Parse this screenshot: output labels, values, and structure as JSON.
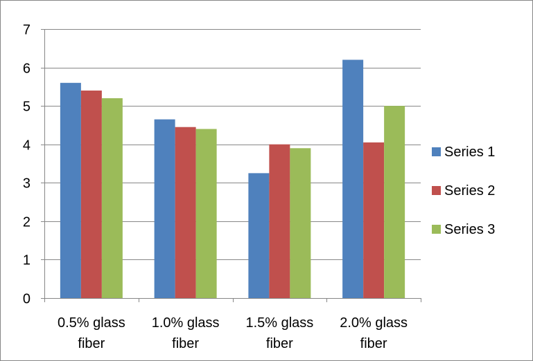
{
  "chart_data": {
    "type": "bar",
    "title": "",
    "xlabel": "",
    "ylabel": "",
    "categories": [
      [
        "0.5% glass",
        "fiber"
      ],
      [
        "1.0% glass",
        "fiber"
      ],
      [
        "1.5% glass",
        "fiber"
      ],
      [
        "2.0% glass",
        "fiber"
      ]
    ],
    "series": [
      {
        "name": "Series 1",
        "color": "#4f81bd",
        "values": [
          5.6,
          4.65,
          3.25,
          6.2
        ]
      },
      {
        "name": "Series 2",
        "color": "#c0504d",
        "values": [
          5.4,
          4.45,
          4.0,
          4.05
        ]
      },
      {
        "name": "Series 3",
        "color": "#9bbb59",
        "values": [
          5.2,
          4.4,
          3.9,
          5.0
        ]
      }
    ],
    "ylim": [
      0,
      7
    ],
    "yticks": [
      0,
      1,
      2,
      3,
      4,
      5,
      6,
      7
    ],
    "grid": true,
    "legend_position": "right",
    "gridline_color": "#868686"
  }
}
